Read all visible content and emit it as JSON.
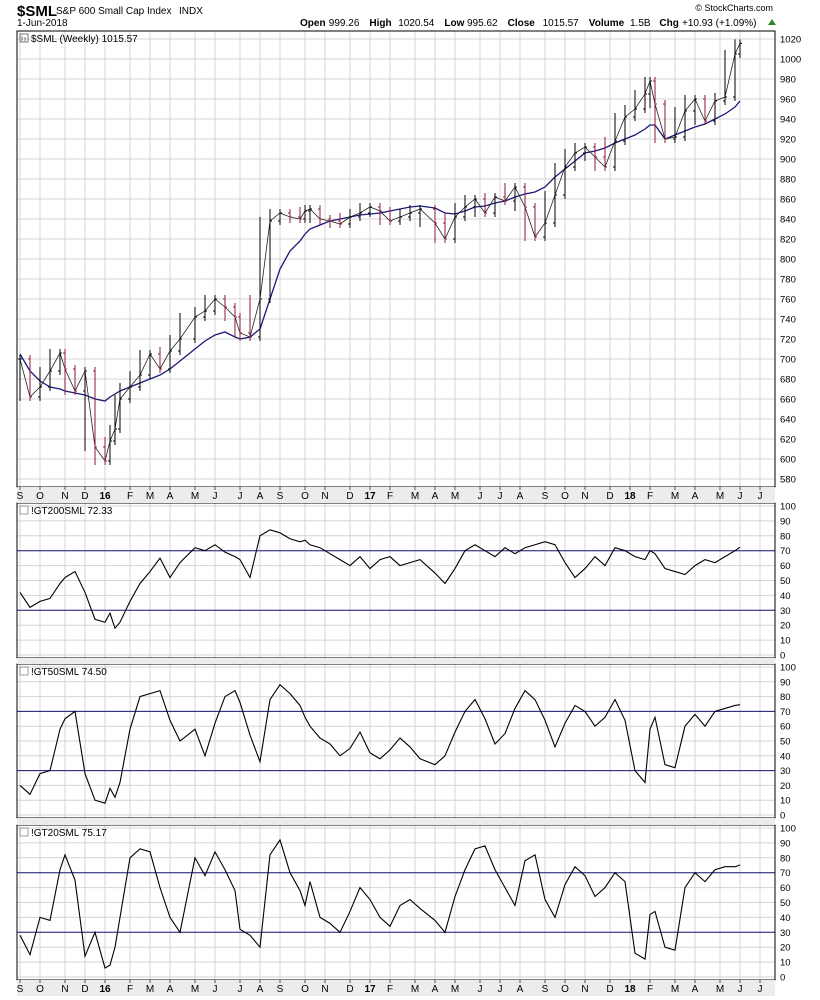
{
  "header": {
    "symbol": "$SML",
    "name": "S&P 600 Small Cap Index",
    "exchange": "INDX",
    "date": "1-Jun-2018",
    "copyright": "© StockCharts.com",
    "quote": [
      {
        "label": "Open",
        "value": "999.26"
      },
      {
        "label": "High",
        "value": "1020.54"
      },
      {
        "label": "Low",
        "value": "995.62"
      },
      {
        "label": "Close",
        "value": "1015.57"
      },
      {
        "label": "Volume",
        "value": "1.5B"
      },
      {
        "label": "Chg",
        "value": "+10.93 (+1.09%)"
      }
    ]
  },
  "colors": {
    "up": "#000000",
    "down": "#8b1a3a",
    "ma": "#1a1a7a",
    "line": "#000000",
    "refline": "#1a1a7a",
    "grid": "#d4d4d4"
  },
  "x_axis": {
    "labels": [
      {
        "text": "S",
        "bold": false,
        "week": 0
      },
      {
        "text": "O",
        "bold": false,
        "week": 4
      },
      {
        "text": "N",
        "bold": false,
        "week": 9
      },
      {
        "text": "D",
        "bold": false,
        "week": 13
      },
      {
        "text": "16",
        "bold": true,
        "week": 17
      },
      {
        "text": "F",
        "bold": false,
        "week": 22
      },
      {
        "text": "M",
        "bold": false,
        "week": 26
      },
      {
        "text": "A",
        "bold": false,
        "week": 30
      },
      {
        "text": "M",
        "bold": false,
        "week": 35
      },
      {
        "text": "J",
        "bold": false,
        "week": 39
      },
      {
        "text": "J",
        "bold": false,
        "week": 44
      },
      {
        "text": "A",
        "bold": false,
        "week": 48
      },
      {
        "text": "S",
        "bold": false,
        "week": 52
      },
      {
        "text": "O",
        "bold": false,
        "week": 57
      },
      {
        "text": "N",
        "bold": false,
        "week": 61
      },
      {
        "text": "D",
        "bold": false,
        "week": 66
      },
      {
        "text": "17",
        "bold": true,
        "week": 70
      },
      {
        "text": "F",
        "bold": false,
        "week": 74
      },
      {
        "text": "M",
        "bold": false,
        "week": 79
      },
      {
        "text": "A",
        "bold": false,
        "week": 83
      },
      {
        "text": "M",
        "bold": false,
        "week": 87
      },
      {
        "text": "J",
        "bold": false,
        "week": 92
      },
      {
        "text": "J",
        "bold": false,
        "week": 96
      },
      {
        "text": "A",
        "bold": false,
        "week": 100
      },
      {
        "text": "S",
        "bold": false,
        "week": 105
      },
      {
        "text": "O",
        "bold": false,
        "week": 109
      },
      {
        "text": "N",
        "bold": false,
        "week": 113
      },
      {
        "text": "D",
        "bold": false,
        "week": 118
      },
      {
        "text": "18",
        "bold": true,
        "week": 122
      },
      {
        "text": "F",
        "bold": false,
        "week": 126
      },
      {
        "text": "M",
        "bold": false,
        "week": 131
      },
      {
        "text": "A",
        "bold": false,
        "week": 135
      },
      {
        "text": "M",
        "bold": false,
        "week": 140
      },
      {
        "text": "J",
        "bold": false,
        "week": 144
      },
      {
        "text": "J",
        "bold": false,
        "week": 148
      }
    ]
  },
  "chart_data": [
    {
      "type": "ohlc",
      "title": "$SML (Weekly) 1015.57",
      "ylim": [
        572,
        1028
      ],
      "yticks": [
        580,
        600,
        620,
        640,
        660,
        680,
        700,
        720,
        740,
        760,
        780,
        800,
        820,
        840,
        860,
        880,
        900,
        920,
        940,
        960,
        980,
        1000,
        1020
      ],
      "overlay_name": "",
      "x_weeks": [
        0,
        2,
        4,
        6,
        8,
        9,
        11,
        13,
        15,
        17,
        18,
        19,
        20,
        22,
        24,
        26,
        28,
        30,
        32,
        35,
        37,
        39,
        41,
        43,
        44,
        46,
        48,
        50,
        52,
        54,
        56,
        57,
        58,
        60,
        62,
        64,
        66,
        68,
        70,
        72,
        74,
        76,
        78,
        80,
        83,
        85,
        87,
        89,
        91,
        93,
        95,
        97,
        99,
        101,
        103,
        105,
        107,
        109,
        111,
        113,
        115,
        117,
        119,
        121,
        123,
        125,
        126,
        127,
        129,
        131,
        133,
        135,
        137,
        139,
        141,
        143,
        144
      ],
      "close": [
        700,
        662,
        672,
        688,
        706,
        690,
        668,
        688,
        612,
        598,
        618,
        630,
        660,
        672,
        684,
        705,
        690,
        708,
        720,
        742,
        748,
        760,
        752,
        742,
        726,
        722,
        760,
        838,
        846,
        842,
        840,
        848,
        850,
        840,
        838,
        835,
        842,
        846,
        852,
        848,
        838,
        842,
        846,
        850,
        836,
        820,
        842,
        852,
        860,
        846,
        862,
        858,
        872,
        852,
        822,
        836,
        864,
        892,
        906,
        912,
        902,
        892,
        918,
        942,
        950,
        965,
        978,
        955,
        920,
        922,
        948,
        960,
        938,
        958,
        962,
        1005,
        1015.57
      ],
      "ma": [
        705,
        688,
        678,
        672,
        670,
        668,
        666,
        664,
        660,
        658,
        662,
        665,
        668,
        672,
        676,
        680,
        684,
        690,
        698,
        710,
        718,
        724,
        727,
        722,
        720,
        722,
        730,
        760,
        790,
        808,
        818,
        825,
        830,
        834,
        838,
        840,
        842,
        844,
        845,
        846,
        848,
        850,
        852,
        853,
        851,
        846,
        845,
        848,
        852,
        853,
        856,
        858,
        862,
        865,
        867,
        872,
        882,
        890,
        898,
        906,
        908,
        911,
        916,
        920,
        924,
        930,
        934,
        934,
        920,
        924,
        928,
        932,
        935,
        940,
        945,
        952,
        958
      ]
    },
    {
      "type": "line",
      "title": "!GT200SML 72.33",
      "ylim": [
        -2,
        102
      ],
      "yticks": [
        0,
        10,
        20,
        30,
        40,
        50,
        60,
        70,
        80,
        90,
        100
      ],
      "reference_lines": [
        30,
        70
      ],
      "x_weeks": [
        0,
        2,
        4,
        6,
        8,
        9,
        11,
        13,
        15,
        17,
        18,
        19,
        20,
        22,
        24,
        26,
        28,
        30,
        32,
        35,
        37,
        39,
        41,
        43,
        44,
        46,
        48,
        50,
        52,
        54,
        56,
        57,
        58,
        60,
        62,
        64,
        66,
        68,
        70,
        72,
        74,
        76,
        78,
        80,
        83,
        85,
        87,
        89,
        91,
        93,
        95,
        97,
        99,
        101,
        103,
        105,
        107,
        109,
        111,
        113,
        115,
        117,
        119,
        121,
        123,
        125,
        126,
        127,
        129,
        131,
        133,
        135,
        137,
        139,
        141,
        143,
        144
      ],
      "values": [
        42,
        32,
        36,
        38,
        48,
        52,
        56,
        42,
        24,
        22,
        28,
        18,
        22,
        36,
        48,
        56,
        65,
        52,
        62,
        72,
        70,
        74,
        69,
        66,
        64,
        52,
        80,
        84,
        82,
        78,
        76,
        77,
        74,
        72,
        68,
        64,
        60,
        66,
        58,
        64,
        66,
        60,
        62,
        64,
        55,
        48,
        58,
        70,
        74,
        70,
        66,
        72,
        68,
        72,
        74,
        76,
        74,
        62,
        52,
        58,
        66,
        60,
        72,
        70,
        66,
        64,
        70,
        68,
        58,
        56,
        54,
        60,
        64,
        62,
        66,
        70,
        72.33
      ]
    },
    {
      "type": "line",
      "title": "!GT50SML 74.50",
      "ylim": [
        -2,
        102
      ],
      "yticks": [
        0,
        10,
        20,
        30,
        40,
        50,
        60,
        70,
        80,
        90,
        100
      ],
      "reference_lines": [
        30,
        70
      ],
      "x_weeks": [
        0,
        2,
        4,
        6,
        8,
        9,
        11,
        13,
        15,
        17,
        18,
        19,
        20,
        22,
        24,
        26,
        28,
        30,
        32,
        35,
        37,
        39,
        41,
        43,
        44,
        46,
        48,
        50,
        52,
        54,
        56,
        57,
        58,
        60,
        62,
        64,
        66,
        68,
        70,
        72,
        74,
        76,
        78,
        80,
        83,
        85,
        87,
        89,
        91,
        93,
        95,
        97,
        99,
        101,
        103,
        105,
        107,
        109,
        111,
        113,
        115,
        117,
        119,
        121,
        123,
        125,
        126,
        127,
        129,
        131,
        133,
        135,
        137,
        139,
        141,
        143,
        144
      ],
      "values": [
        20,
        14,
        28,
        30,
        58,
        65,
        70,
        28,
        10,
        8,
        18,
        12,
        22,
        58,
        80,
        82,
        84,
        64,
        50,
        58,
        40,
        62,
        80,
        84,
        76,
        54,
        36,
        78,
        88,
        82,
        74,
        66,
        60,
        52,
        48,
        40,
        45,
        56,
        42,
        38,
        44,
        52,
        46,
        38,
        34,
        40,
        56,
        70,
        78,
        65,
        48,
        55,
        72,
        84,
        78,
        64,
        46,
        62,
        74,
        70,
        60,
        66,
        78,
        64,
        30,
        22,
        58,
        66,
        34,
        32,
        60,
        68,
        60,
        70,
        72,
        74,
        74.5
      ]
    },
    {
      "type": "line",
      "title": "!GT20SML 75.17",
      "ylim": [
        -2,
        102
      ],
      "yticks": [
        0,
        10,
        20,
        30,
        40,
        50,
        60,
        70,
        80,
        90,
        100
      ],
      "reference_lines": [
        30,
        70
      ],
      "x_weeks": [
        0,
        2,
        4,
        6,
        8,
        9,
        11,
        13,
        15,
        17,
        18,
        19,
        20,
        22,
        24,
        26,
        28,
        30,
        32,
        35,
        37,
        39,
        41,
        43,
        44,
        46,
        48,
        50,
        52,
        54,
        56,
        57,
        58,
        60,
        62,
        64,
        66,
        68,
        70,
        72,
        74,
        76,
        78,
        80,
        83,
        85,
        87,
        89,
        91,
        93,
        95,
        97,
        99,
        101,
        103,
        105,
        107,
        109,
        111,
        113,
        115,
        117,
        119,
        121,
        123,
        125,
        126,
        127,
        129,
        131,
        133,
        135,
        137,
        139,
        141,
        143,
        144
      ],
      "values": [
        28,
        15,
        40,
        38,
        72,
        82,
        65,
        14,
        30,
        6,
        8,
        20,
        40,
        80,
        86,
        84,
        60,
        40,
        30,
        80,
        68,
        84,
        72,
        58,
        32,
        28,
        20,
        82,
        92,
        70,
        58,
        48,
        64,
        40,
        36,
        30,
        44,
        60,
        52,
        40,
        34,
        48,
        52,
        46,
        38,
        30,
        54,
        72,
        86,
        88,
        72,
        60,
        48,
        78,
        82,
        52,
        40,
        62,
        74,
        68,
        54,
        60,
        70,
        64,
        16,
        12,
        42,
        44,
        20,
        18,
        60,
        70,
        64,
        72,
        74,
        74,
        75.17
      ]
    }
  ]
}
